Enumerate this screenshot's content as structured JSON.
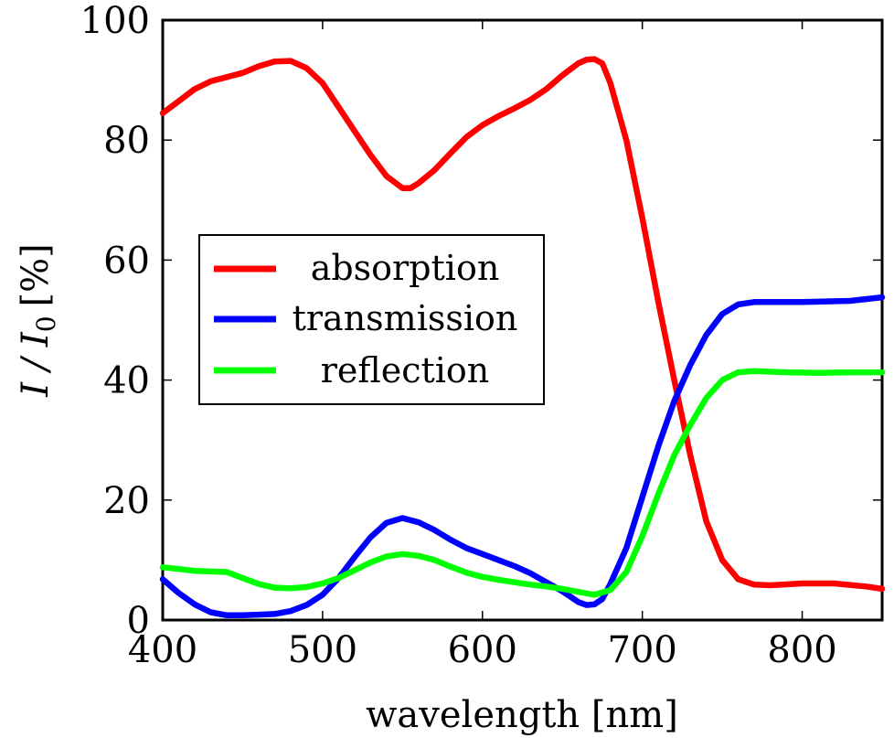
{
  "chart_data": {
    "type": "line",
    "xlabel": "wavelength [nm]",
    "ylabel_main": "I / I",
    "ylabel_sub": "0",
    "ylabel_unit": "[%]",
    "xlim": [
      400,
      850
    ],
    "ylim": [
      0,
      100
    ],
    "xticks": [
      400,
      500,
      600,
      700,
      800
    ],
    "yticks": [
      0,
      20,
      40,
      60,
      80,
      100
    ],
    "grid": false,
    "legend_position": "middle-left",
    "series": [
      {
        "name": "absorption",
        "color": "#ff0000",
        "points": [
          [
            400,
            84.5
          ],
          [
            410,
            86.5
          ],
          [
            420,
            88.5
          ],
          [
            430,
            89.8
          ],
          [
            440,
            90.5
          ],
          [
            450,
            91.2
          ],
          [
            460,
            92.3
          ],
          [
            470,
            93.1
          ],
          [
            480,
            93.2
          ],
          [
            490,
            92.0
          ],
          [
            500,
            89.5
          ],
          [
            510,
            85.5
          ],
          [
            520,
            81.5
          ],
          [
            530,
            77.5
          ],
          [
            540,
            74.0
          ],
          [
            550,
            72.0
          ],
          [
            555,
            72.0
          ],
          [
            560,
            72.8
          ],
          [
            570,
            75.0
          ],
          [
            580,
            77.8
          ],
          [
            590,
            80.5
          ],
          [
            600,
            82.5
          ],
          [
            610,
            84.0
          ],
          [
            620,
            85.3
          ],
          [
            630,
            86.7
          ],
          [
            640,
            88.5
          ],
          [
            650,
            90.8
          ],
          [
            660,
            92.8
          ],
          [
            665,
            93.4
          ],
          [
            670,
            93.5
          ],
          [
            675,
            92.8
          ],
          [
            680,
            89.5
          ],
          [
            690,
            80.0
          ],
          [
            700,
            67.0
          ],
          [
            710,
            53.0
          ],
          [
            720,
            40.0
          ],
          [
            730,
            27.5
          ],
          [
            740,
            16.5
          ],
          [
            750,
            10.0
          ],
          [
            760,
            6.8
          ],
          [
            770,
            5.9
          ],
          [
            780,
            5.8
          ],
          [
            800,
            6.1
          ],
          [
            820,
            6.1
          ],
          [
            840,
            5.6
          ],
          [
            850,
            5.2
          ]
        ]
      },
      {
        "name": "transmission",
        "color": "#0000ff",
        "points": [
          [
            400,
            6.8
          ],
          [
            410,
            4.5
          ],
          [
            420,
            2.6
          ],
          [
            430,
            1.3
          ],
          [
            440,
            0.8
          ],
          [
            450,
            0.8
          ],
          [
            460,
            0.9
          ],
          [
            470,
            1.0
          ],
          [
            480,
            1.5
          ],
          [
            490,
            2.5
          ],
          [
            500,
            4.2
          ],
          [
            510,
            7.0
          ],
          [
            520,
            10.5
          ],
          [
            530,
            13.8
          ],
          [
            540,
            16.2
          ],
          [
            550,
            17.0
          ],
          [
            560,
            16.3
          ],
          [
            570,
            15.0
          ],
          [
            580,
            13.4
          ],
          [
            590,
            12.0
          ],
          [
            600,
            11.0
          ],
          [
            610,
            10.0
          ],
          [
            620,
            9.0
          ],
          [
            630,
            7.8
          ],
          [
            640,
            6.3
          ],
          [
            650,
            4.8
          ],
          [
            660,
            3.0
          ],
          [
            665,
            2.5
          ],
          [
            670,
            2.6
          ],
          [
            675,
            3.5
          ],
          [
            680,
            6.0
          ],
          [
            690,
            12.0
          ],
          [
            700,
            20.5
          ],
          [
            710,
            29.0
          ],
          [
            720,
            36.5
          ],
          [
            730,
            42.5
          ],
          [
            740,
            47.5
          ],
          [
            750,
            51.0
          ],
          [
            760,
            52.6
          ],
          [
            770,
            53.0
          ],
          [
            800,
            53.0
          ],
          [
            830,
            53.2
          ],
          [
            850,
            53.8
          ]
        ]
      },
      {
        "name": "reflection",
        "color": "#00ff00",
        "points": [
          [
            400,
            8.8
          ],
          [
            410,
            8.5
          ],
          [
            420,
            8.2
          ],
          [
            430,
            8.1
          ],
          [
            440,
            8.0
          ],
          [
            450,
            7.0
          ],
          [
            460,
            6.0
          ],
          [
            470,
            5.4
          ],
          [
            480,
            5.3
          ],
          [
            490,
            5.5
          ],
          [
            500,
            6.1
          ],
          [
            510,
            7.0
          ],
          [
            520,
            8.3
          ],
          [
            530,
            9.6
          ],
          [
            540,
            10.6
          ],
          [
            550,
            11.0
          ],
          [
            560,
            10.7
          ],
          [
            570,
            10.0
          ],
          [
            580,
            8.9
          ],
          [
            590,
            7.9
          ],
          [
            600,
            7.2
          ],
          [
            610,
            6.7
          ],
          [
            620,
            6.3
          ],
          [
            630,
            5.9
          ],
          [
            640,
            5.6
          ],
          [
            650,
            5.2
          ],
          [
            660,
            4.7
          ],
          [
            670,
            4.2
          ],
          [
            680,
            5.0
          ],
          [
            690,
            8.0
          ],
          [
            700,
            14.0
          ],
          [
            710,
            21.0
          ],
          [
            720,
            27.5
          ],
          [
            730,
            32.5
          ],
          [
            740,
            37.0
          ],
          [
            750,
            40.0
          ],
          [
            760,
            41.3
          ],
          [
            770,
            41.5
          ],
          [
            790,
            41.3
          ],
          [
            810,
            41.2
          ],
          [
            830,
            41.3
          ],
          [
            850,
            41.3
          ]
        ]
      }
    ]
  }
}
